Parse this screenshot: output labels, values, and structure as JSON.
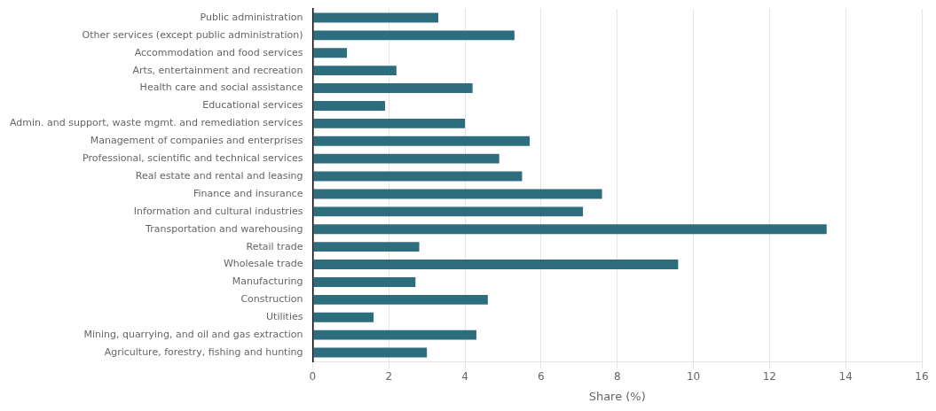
{
  "chart_data": {
    "type": "bar",
    "orientation": "horizontal",
    "categories": [
      "Public administration",
      "Other services (except public administration)",
      "Accommodation and food services",
      "Arts, entertainment and recreation",
      "Health care and social assistance",
      "Educational services",
      "Admin. and support, waste mgmt. and remediation services",
      "Management of companies and enterprises",
      "Professional, scientific and technical services",
      "Real estate and rental and leasing",
      "Finance and insurance",
      "Information and cultural industries",
      "Transportation and warehousing",
      "Retail trade",
      "Wholesale trade",
      "Manufacturing",
      "Construction",
      "Utilities",
      "Mining, quarrying, and oil and gas extraction",
      "Agriculture, forestry, fishing and hunting"
    ],
    "values": [
      3.3,
      5.3,
      0.9,
      2.2,
      4.2,
      1.9,
      4.0,
      5.7,
      4.9,
      5.5,
      7.6,
      7.1,
      13.5,
      2.8,
      9.6,
      2.7,
      4.6,
      1.6,
      4.3,
      3.0
    ],
    "color": "#2d6e7e",
    "xlabel": "Share (%)",
    "xlim": [
      0,
      16
    ],
    "xticks": [
      0,
      2,
      4,
      6,
      8,
      10,
      12,
      14,
      16
    ],
    "grid": "x"
  }
}
